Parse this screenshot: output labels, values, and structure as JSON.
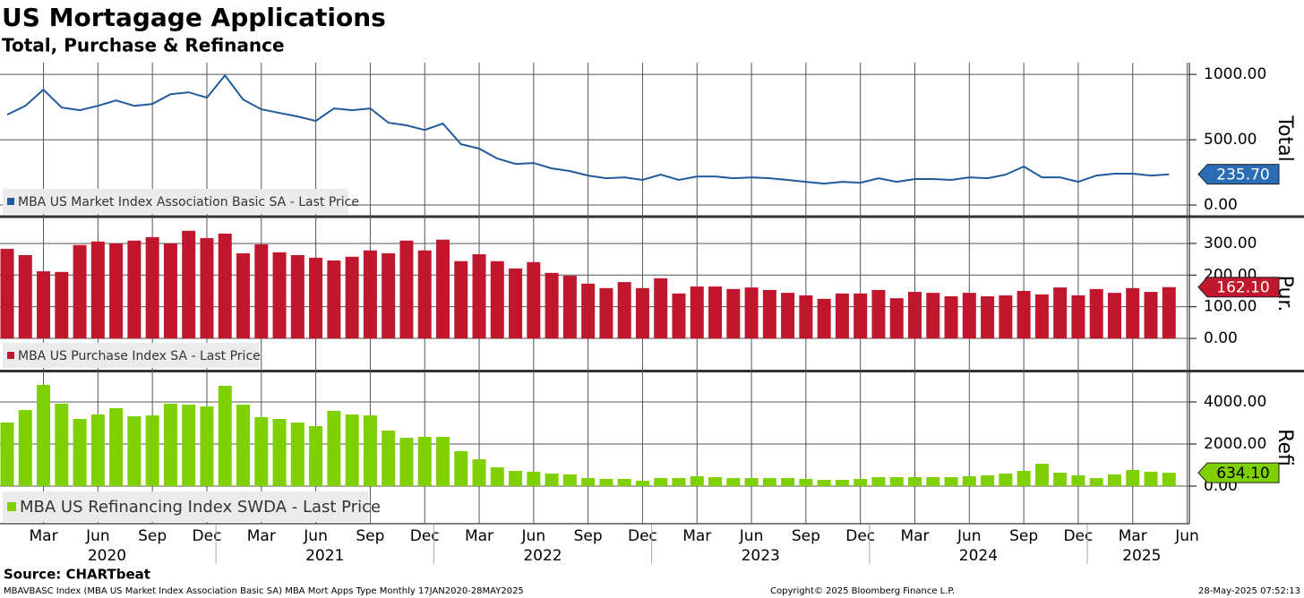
{
  "header": {
    "title": "US Mortagage Applications",
    "subtitle": "Total, Purchase & Refinance"
  },
  "footer": {
    "source": "Source: CHARTbeat",
    "ticker": "MBAVBASC Index (MBA US Market Index Association Basic SA) MBA Mort Apps Type  Monthly 17JAN2020-28MAY2025",
    "copyright": "Copyright© 2025 Bloomberg Finance L.P.",
    "timestamp": "28-May-2025 07:52:13"
  },
  "chart_data": [
    {
      "type": "line",
      "ylabel": "Total",
      "x": [
        "2020-01",
        "2020-02",
        "2020-03",
        "2020-04",
        "2020-05",
        "2020-06",
        "2020-07",
        "2020-08",
        "2020-09",
        "2020-10",
        "2020-11",
        "2020-12",
        "2021-01",
        "2021-02",
        "2021-03",
        "2021-04",
        "2021-05",
        "2021-06",
        "2021-07",
        "2021-08",
        "2021-09",
        "2021-10",
        "2021-11",
        "2021-12",
        "2022-01",
        "2022-02",
        "2022-03",
        "2022-04",
        "2022-05",
        "2022-06",
        "2022-07",
        "2022-08",
        "2022-09",
        "2022-10",
        "2022-11",
        "2022-12",
        "2023-01",
        "2023-02",
        "2023-03",
        "2023-04",
        "2023-05",
        "2023-06",
        "2023-07",
        "2023-08",
        "2023-09",
        "2023-10",
        "2023-11",
        "2023-12",
        "2024-01",
        "2024-02",
        "2024-03",
        "2024-04",
        "2024-05",
        "2024-06",
        "2024-07",
        "2024-08",
        "2024-09",
        "2024-10",
        "2024-11",
        "2024-12",
        "2025-01",
        "2025-02",
        "2025-03",
        "2025-04",
        "2025-05"
      ],
      "series": [
        {
          "name": "MBA US Market Index Association Basic SA - Last Price",
          "color": "#1f5b9c",
          "tag_color": "#2a6db5",
          "tag_text": "#ffffff",
          "last_label": "235.70",
          "values": [
            692,
            760,
            884,
            747,
            726,
            760,
            801,
            760,
            774,
            849,
            863,
            822,
            993,
            808,
            733,
            705,
            678,
            644,
            740,
            726,
            740,
            630,
            610,
            575,
            623,
            466,
            432,
            356,
            315,
            322,
            281,
            260,
            226,
            205,
            212,
            192,
            233,
            192,
            219,
            219,
            205,
            212,
            205,
            192,
            178,
            164,
            178,
            171,
            205,
            178,
            199,
            199,
            192,
            212,
            205,
            233,
            295,
            212,
            212,
            178,
            226,
            240,
            240,
            226,
            235.7
          ]
        }
      ],
      "ylim": [
        -75,
        1090
      ],
      "yticks": [
        {
          "value": 0,
          "label": "0.00"
        },
        {
          "value": 500,
          "label": "500.00"
        },
        {
          "value": 1000,
          "label": "1000.00"
        }
      ]
    },
    {
      "type": "bar",
      "ylabel": "Pur.",
      "x": [
        "2020-01",
        "2020-02",
        "2020-03",
        "2020-04",
        "2020-05",
        "2020-06",
        "2020-07",
        "2020-08",
        "2020-09",
        "2020-10",
        "2020-11",
        "2020-12",
        "2021-01",
        "2021-02",
        "2021-03",
        "2021-04",
        "2021-05",
        "2021-06",
        "2021-07",
        "2021-08",
        "2021-09",
        "2021-10",
        "2021-11",
        "2021-12",
        "2022-01",
        "2022-02",
        "2022-03",
        "2022-04",
        "2022-05",
        "2022-06",
        "2022-07",
        "2022-08",
        "2022-09",
        "2022-10",
        "2022-11",
        "2022-12",
        "2023-01",
        "2023-02",
        "2023-03",
        "2023-04",
        "2023-05",
        "2023-06",
        "2023-07",
        "2023-08",
        "2023-09",
        "2023-10",
        "2023-11",
        "2023-12",
        "2024-01",
        "2024-02",
        "2024-03",
        "2024-04",
        "2024-05",
        "2024-06",
        "2024-07",
        "2024-08",
        "2024-09",
        "2024-10",
        "2024-11",
        "2024-12",
        "2025-01",
        "2025-02",
        "2025-03",
        "2025-04",
        "2025-05"
      ],
      "series": [
        {
          "name": "MBA US Purchase Index SA - Last Price",
          "color": "#c0172d",
          "tag_color": "#c0172d",
          "tag_text": "#ffffff",
          "last_label": "162.10",
          "values": [
            283,
            263,
            212,
            210,
            295,
            306,
            300,
            309,
            320,
            300,
            340,
            317,
            331,
            269,
            297,
            272,
            263,
            255,
            246,
            258,
            278,
            269,
            309,
            278,
            312,
            244,
            266,
            244,
            221,
            241,
            207,
            198,
            173,
            159,
            178,
            159,
            190,
            142,
            164,
            164,
            156,
            161,
            153,
            144,
            136,
            125,
            142,
            142,
            153,
            127,
            147,
            144,
            133,
            144,
            133,
            136,
            150,
            139,
            161,
            136,
            156,
            144,
            159,
            147,
            162.1
          ]
        }
      ],
      "ylim": [
        -96,
        379
      ],
      "yticks": [
        {
          "value": 0,
          "label": "0.00"
        },
        {
          "value": 100,
          "label": "100.00"
        },
        {
          "value": 200,
          "label": "200.00"
        },
        {
          "value": 300,
          "label": "300.00"
        }
      ]
    },
    {
      "type": "bar",
      "ylabel": "Refi",
      "x": [
        "2020-01",
        "2020-02",
        "2020-03",
        "2020-04",
        "2020-05",
        "2020-06",
        "2020-07",
        "2020-08",
        "2020-09",
        "2020-10",
        "2020-11",
        "2020-12",
        "2021-01",
        "2021-02",
        "2021-03",
        "2021-04",
        "2021-05",
        "2021-06",
        "2021-07",
        "2021-08",
        "2021-09",
        "2021-10",
        "2021-11",
        "2021-12",
        "2022-01",
        "2022-02",
        "2022-03",
        "2022-04",
        "2022-05",
        "2022-06",
        "2022-07",
        "2022-08",
        "2022-09",
        "2022-10",
        "2022-11",
        "2022-12",
        "2023-01",
        "2023-02",
        "2023-03",
        "2023-04",
        "2023-05",
        "2023-06",
        "2023-07",
        "2023-08",
        "2023-09",
        "2023-10",
        "2023-11",
        "2023-12",
        "2024-01",
        "2024-02",
        "2024-03",
        "2024-04",
        "2024-05",
        "2024-06",
        "2024-07",
        "2024-08",
        "2024-09",
        "2024-10",
        "2024-11",
        "2024-12",
        "2025-01",
        "2025-02",
        "2025-03",
        "2025-04",
        "2025-05"
      ],
      "series": [
        {
          "name": "MBA US Refinancing Index SWDA - Last Price",
          "color": "#7ed000",
          "tag_color": "#7ed000",
          "tag_text": "#000000",
          "last_label": "634.10",
          "values": [
            3021,
            3617,
            4809,
            3915,
            3191,
            3404,
            3702,
            3319,
            3362,
            3915,
            3872,
            3787,
            4766,
            3872,
            3277,
            3191,
            3021,
            2851,
            3574,
            3404,
            3362,
            2638,
            2298,
            2340,
            2340,
            1660,
            1277,
            894,
            723,
            681,
            596,
            553,
            383,
            340,
            340,
            255,
            383,
            383,
            468,
            426,
            383,
            383,
            383,
            383,
            340,
            298,
            298,
            340,
            426,
            426,
            426,
            426,
            426,
            468,
            511,
            596,
            723,
            1064,
            638,
            511,
            383,
            553,
            766,
            681,
            634.1
          ]
        }
      ],
      "ylim": [
        -1700,
        5360
      ],
      "yticks": [
        {
          "value": 0,
          "label": "0.00"
        },
        {
          "value": 2000,
          "label": "2000.00"
        },
        {
          "value": 4000,
          "label": "4000.00"
        }
      ],
      "xticks": [
        {
          "value": "2020-03",
          "label": "Mar"
        },
        {
          "value": "2020-06",
          "label": "Jun"
        },
        {
          "value": "2020-09",
          "label": "Sep"
        },
        {
          "value": "2020-12",
          "label": "Dec"
        },
        {
          "value": "2021-03",
          "label": "Mar"
        },
        {
          "value": "2021-06",
          "label": "Jun"
        },
        {
          "value": "2021-09",
          "label": "Sep"
        },
        {
          "value": "2021-12",
          "label": "Dec"
        },
        {
          "value": "2022-03",
          "label": "Mar"
        },
        {
          "value": "2022-06",
          "label": "Jun"
        },
        {
          "value": "2022-09",
          "label": "Sep"
        },
        {
          "value": "2022-12",
          "label": "Dec"
        },
        {
          "value": "2023-03",
          "label": "Mar"
        },
        {
          "value": "2023-06",
          "label": "Jun"
        },
        {
          "value": "2023-09",
          "label": "Sep"
        },
        {
          "value": "2023-12",
          "label": "Dec"
        },
        {
          "value": "2024-03",
          "label": "Mar"
        },
        {
          "value": "2024-06",
          "label": "Jun"
        },
        {
          "value": "2024-09",
          "label": "Sep"
        },
        {
          "value": "2024-12",
          "label": "Dec"
        },
        {
          "value": "2025-03",
          "label": "Mar"
        },
        {
          "value": "2025-06",
          "label": "Jun"
        }
      ],
      "year_labels": [
        2020,
        2021,
        2022,
        2023,
        2024,
        2025
      ]
    }
  ]
}
